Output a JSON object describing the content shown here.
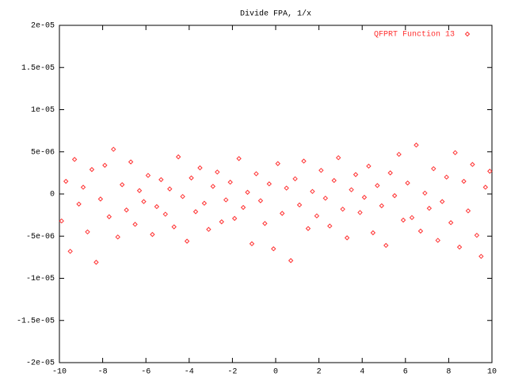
{
  "chart_data": {
    "type": "scatter",
    "title": "Divide FPA, 1/x",
    "legend": "top-right",
    "series": [
      {
        "name": "QFPRT Function 13",
        "color": "#ff3030",
        "x": [
          -9.9,
          -9.7,
          -9.5,
          -9.3,
          -9.1,
          -8.9,
          -8.7,
          -8.5,
          -8.3,
          -8.1,
          -7.9,
          -7.7,
          -7.5,
          -7.3,
          -7.1,
          -6.9,
          -6.7,
          -6.5,
          -6.3,
          -6.1,
          -5.9,
          -5.7,
          -5.5,
          -5.3,
          -5.1,
          -4.9,
          -4.7,
          -4.5,
          -4.3,
          -4.1,
          -3.9,
          -3.7,
          -3.5,
          -3.3,
          -3.1,
          -2.9,
          -2.7,
          -2.5,
          -2.3,
          -2.1,
          -1.9,
          -1.7,
          -1.5,
          -1.3,
          -1.1,
          -0.9,
          -0.7,
          -0.5,
          -0.3,
          -0.1,
          0.1,
          0.3,
          0.5,
          0.7,
          0.9,
          1.1,
          1.3,
          1.5,
          1.7,
          1.9,
          2.1,
          2.3,
          2.5,
          2.7,
          2.9,
          3.1,
          3.3,
          3.5,
          3.7,
          3.9,
          4.1,
          4.3,
          4.5,
          4.7,
          4.9,
          5.1,
          5.3,
          5.5,
          5.7,
          5.9,
          6.1,
          6.3,
          6.5,
          6.7,
          6.9,
          7.1,
          7.3,
          7.5,
          7.7,
          7.9,
          8.1,
          8.3,
          8.5,
          8.7,
          8.9,
          9.1,
          9.3,
          9.5,
          9.7,
          9.9
        ],
        "values": [
          -3.2e-06,
          1.5e-06,
          -6.8e-06,
          4.1e-06,
          -1.2e-06,
          8e-07,
          -4.5e-06,
          2.9e-06,
          -8.1e-06,
          -6e-07,
          3.4e-06,
          -2.7e-06,
          5.3e-06,
          -5.1e-06,
          1.1e-06,
          -1.9e-06,
          3.8e-06,
          -3.6e-06,
          4e-07,
          -9e-07,
          2.2e-06,
          -4.8e-06,
          -1.5e-06,
          1.7e-06,
          -2.4e-06,
          6e-07,
          -3.9e-06,
          4.4e-06,
          -3e-07,
          -5.6e-06,
          1.9e-06,
          -2.1e-06,
          3.1e-06,
          -1.1e-06,
          -4.2e-06,
          9e-07,
          2.6e-06,
          -3.3e-06,
          -7e-07,
          1.4e-06,
          -2.9e-06,
          4.2e-06,
          -1.6e-06,
          2e-07,
          -5.9e-06,
          2.4e-06,
          -8e-07,
          -3.5e-06,
          1.2e-06,
          -6.5e-06,
          3.6e-06,
          -2.3e-06,
          7e-07,
          -7.9e-06,
          1.8e-06,
          -1.3e-06,
          3.9e-06,
          -4.1e-06,
          3e-07,
          -2.6e-06,
          2.8e-06,
          -5e-07,
          -3.8e-06,
          1.6e-06,
          4.3e-06,
          -1.8e-06,
          -5.2e-06,
          5e-07,
          2.3e-06,
          -2.2e-06,
          -4e-07,
          3.3e-06,
          -4.6e-06,
          1e-06,
          -1.4e-06,
          -6.1e-06,
          2.5e-06,
          -2e-07,
          4.7e-06,
          -3.1e-06,
          1.3e-06,
          -2.8e-06,
          5.8e-06,
          -4.4e-06,
          1e-07,
          -1.7e-06,
          3e-06,
          -5.5e-06,
          -9e-07,
          2e-06,
          -3.4e-06,
          4.9e-06,
          -6.3e-06,
          1.5e-06,
          -2e-06,
          3.5e-06,
          -4.9e-06,
          -7.4e-06,
          8e-07,
          2.7e-06
        ]
      }
    ],
    "xlim": [
      -10,
      10
    ],
    "xticks": [
      -10,
      -8,
      -6,
      -4,
      -2,
      0,
      2,
      4,
      6,
      8,
      10
    ],
    "ylim": [
      -2e-05,
      2e-05
    ],
    "yticks": [
      {
        "value": -2e-05,
        "label": "-2e-05"
      },
      {
        "value": -1.5e-05,
        "label": "-1.5e-05"
      },
      {
        "value": -1e-05,
        "label": "-1e-05"
      },
      {
        "value": -5e-06,
        "label": "-5e-06"
      },
      0,
      {
        "value": 5e-06,
        "label": "5e-06"
      },
      {
        "value": 1e-05,
        "label": "1e-05"
      },
      {
        "value": 1.5e-05,
        "label": "1.5e-05"
      },
      {
        "value": 2e-05,
        "label": "2e-05"
      }
    ]
  }
}
